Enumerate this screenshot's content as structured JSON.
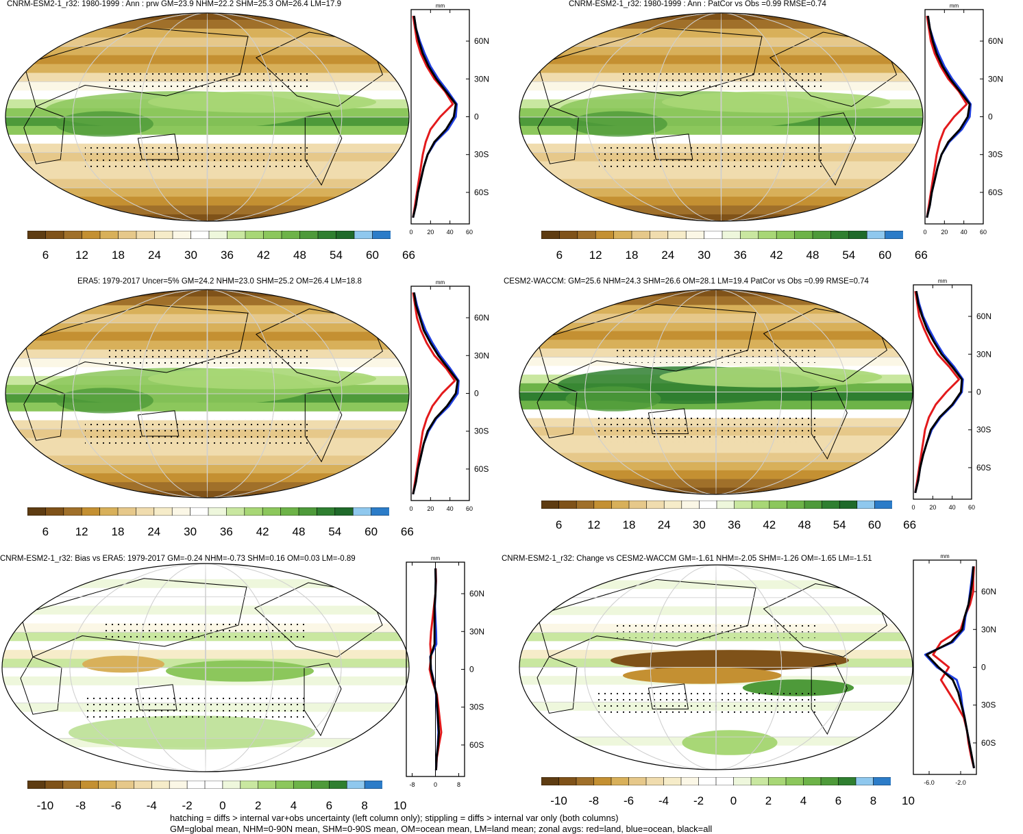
{
  "panels": [
    {
      "id": "p1",
      "title": "CNRM-ESM2-1_r32: 1980-1999 : Ann : prw GM=23.9 NHM=22.2 SHM=25.3 OM=26.4 LM=17.9",
      "kind": "abs",
      "zonal": {
        "unit": "mm",
        "xticks": [
          "0",
          "20",
          "40",
          "60"
        ],
        "yticks": [
          "60N",
          "30N",
          "0",
          "30S",
          "60S"
        ]
      },
      "colorbar": {
        "labels": [
          "6",
          "12",
          "18",
          "24",
          "30",
          "36",
          "42",
          "48",
          "54",
          "60",
          "66"
        ]
      }
    },
    {
      "id": "p2",
      "title": "CNRM-ESM2-1_r32: 1980-1999 : Ann : PatCor vs Obs =0.99 RMSE=0.74",
      "kind": "abs",
      "zonal": {
        "unit": "mm",
        "xticks": [
          "0",
          "20",
          "40",
          "60"
        ],
        "yticks": [
          "60N",
          "30N",
          "0",
          "30S",
          "60S"
        ]
      },
      "colorbar": {
        "labels": [
          "6",
          "12",
          "18",
          "24",
          "30",
          "36",
          "42",
          "48",
          "54",
          "60",
          "66"
        ]
      }
    },
    {
      "id": "p3",
      "title": "ERA5: 1979-2017 Uncer=5% GM=24.2 NHM=23.0 SHM=25.2 OM=26.4 LM=18.8",
      "kind": "abs",
      "zonal": {
        "unit": "mm",
        "xticks": [
          "0",
          "20",
          "40",
          "60"
        ],
        "yticks": [
          "60N",
          "30N",
          "0",
          "30S",
          "60S"
        ]
      },
      "colorbar": {
        "labels": [
          "6",
          "12",
          "18",
          "24",
          "30",
          "36",
          "42",
          "48",
          "54",
          "60",
          "66"
        ]
      }
    },
    {
      "id": "p4",
      "title": "CESM2-WACCM: GM=25.6 NHM=24.3 SHM=26.6 OM=28.1 LM=19.4 PatCor vs Obs =0.99 RMSE=0.74",
      "kind": "abs",
      "zonal": {
        "unit": "mm",
        "xticks": [
          "0",
          "20",
          "40",
          "60"
        ],
        "yticks": [
          "60N",
          "30N",
          "0",
          "30S",
          "60S"
        ]
      },
      "colorbar": {
        "labels": [
          "6",
          "12",
          "18",
          "24",
          "30",
          "36",
          "42",
          "48",
          "54",
          "60",
          "66"
        ]
      }
    },
    {
      "id": "p5",
      "title": "CNRM-ESM2-1_r32: Bias vs ERA5: 1979-2017 GM=-0.24 NHM=-0.73 SHM=0.16 OM=0.03 LM=-0.89",
      "kind": "diff",
      "zonal": {
        "unit": "mm",
        "xticks": [
          "-8",
          "0",
          "8"
        ],
        "yticks": [
          "60N",
          "30N",
          "0",
          "30S",
          "60S"
        ]
      },
      "colorbar": {
        "labels": [
          "-10",
          "-8",
          "-6",
          "-4",
          "-2",
          "0",
          "2",
          "4",
          "6",
          "8",
          "10"
        ]
      }
    },
    {
      "id": "p6",
      "title": "CNRM-ESM2-1_r32: Change vs CESM2-WACCM GM=-1.61 NHM=-2.05 SHM=-1.26 OM=-1.65 LM=-1.51",
      "kind": "diff",
      "zonal": {
        "unit": "mm",
        "xticks": [
          "-6.0",
          "-2.0"
        ],
        "yticks": [
          "60N",
          "30N",
          "0",
          "30S",
          "60S"
        ]
      },
      "colorbar": {
        "labels": [
          "-10",
          "-8",
          "-6",
          "-4",
          "-2",
          "0",
          "2",
          "4",
          "6",
          "8",
          "10"
        ]
      }
    }
  ],
  "colors": {
    "abs": [
      "#5e3c12",
      "#7f5219",
      "#a0702a",
      "#c49032",
      "#d8b05a",
      "#e6c88a",
      "#f0dcae",
      "#f6ecc9",
      "#fbf7e6",
      "#ffffff",
      "#eef7dc",
      "#c9e7a0",
      "#a8d776",
      "#8cc75c",
      "#6db348",
      "#4e9a3a",
      "#2f7f30",
      "#1f6a2a",
      "#8fc8ee",
      "#2c7cc8"
    ],
    "diff": [
      "#5e3c12",
      "#7f5219",
      "#a0702a",
      "#c49032",
      "#d8b05a",
      "#e6c88a",
      "#f0dcae",
      "#f6ecc9",
      "#fbf7e6",
      "#ffffff",
      "#ffffff",
      "#eef7dc",
      "#c9e7a0",
      "#a8d776",
      "#8cc75c",
      "#6db348",
      "#4e9a3a",
      "#2f7f30",
      "#8fc8ee",
      "#2c7cc8"
    ],
    "land": "#e31a1c",
    "ocean": "#1f3fe0",
    "all": "#000000"
  },
  "chart_data": {
    "type": "zonal-mean line profiles",
    "y_units": "latitude",
    "panels": [
      {
        "title": "CNRM-ESM2-1_r32: 1980-1999 : Ann : prw",
        "xlim": [
          0,
          60
        ],
        "series": [
          {
            "name": "land",
            "x": [
              2,
              4,
              6,
              8,
              10,
              12,
              15,
              20,
              30,
              43,
              35,
              24,
              16,
              10,
              6,
              4,
              2
            ],
            "y": [
              -80,
              -70,
              -60,
              -50,
              -40,
              -30,
              -20,
              -10,
              0,
              10,
              20,
              30,
              40,
              50,
              60,
              70,
              80
            ]
          },
          {
            "name": "ocean",
            "x": [
              2,
              5,
              7,
              10,
              13,
              17,
              25,
              38,
              46,
              47,
              38,
              28,
              20,
              14,
              9,
              5,
              3
            ],
            "y": [
              -80,
              -70,
              -60,
              -50,
              -40,
              -30,
              -20,
              -10,
              0,
              10,
              20,
              30,
              40,
              50,
              60,
              70,
              80
            ]
          },
          {
            "name": "all",
            "x": [
              2,
              5,
              7,
              10,
              13,
              17,
              24,
              36,
              44,
              46,
              36,
              26,
              18,
              12,
              8,
              5,
              3
            ],
            "y": [
              -80,
              -70,
              -60,
              -50,
              -40,
              -30,
              -20,
              -10,
              0,
              10,
              20,
              30,
              40,
              50,
              60,
              70,
              80
            ]
          }
        ]
      },
      {
        "title": "CNRM-ESM2-1_r32: 1980-1999 : Ann : PatCor vs Obs =0.99 RMSE=0.74",
        "xlim": [
          0,
          60
        ],
        "series": [
          {
            "name": "land",
            "x": [
              2,
              4,
              6,
              8,
              10,
              12,
              15,
              20,
              30,
              43,
              35,
              24,
              16,
              10,
              6,
              4,
              2
            ],
            "y": [
              -80,
              -70,
              -60,
              -50,
              -40,
              -30,
              -20,
              -10,
              0,
              10,
              20,
              30,
              40,
              50,
              60,
              70,
              80
            ]
          },
          {
            "name": "ocean",
            "x": [
              2,
              5,
              7,
              10,
              13,
              17,
              25,
              38,
              46,
              47,
              38,
              28,
              20,
              14,
              9,
              5,
              3
            ],
            "y": [
              -80,
              -70,
              -60,
              -50,
              -40,
              -30,
              -20,
              -10,
              0,
              10,
              20,
              30,
              40,
              50,
              60,
              70,
              80
            ]
          },
          {
            "name": "all",
            "x": [
              2,
              5,
              7,
              10,
              13,
              17,
              24,
              36,
              44,
              46,
              36,
              26,
              18,
              12,
              8,
              5,
              3
            ],
            "y": [
              -80,
              -70,
              -60,
              -50,
              -40,
              -30,
              -20,
              -10,
              0,
              10,
              20,
              30,
              40,
              50,
              60,
              70,
              80
            ]
          }
        ]
      },
      {
        "title": "ERA5: 1979-2017",
        "xlim": [
          0,
          60
        ],
        "series": [
          {
            "name": "land",
            "x": [
              2,
              4,
              6,
              8,
              10,
              12,
              16,
              22,
              32,
              45,
              36,
              24,
              16,
              10,
              6,
              4,
              2
            ],
            "y": [
              -80,
              -70,
              -60,
              -50,
              -40,
              -30,
              -20,
              -10,
              0,
              10,
              20,
              30,
              40,
              50,
              60,
              70,
              80
            ]
          },
          {
            "name": "ocean",
            "x": [
              2,
              5,
              7,
              10,
              13,
              18,
              26,
              39,
              48,
              49,
              40,
              30,
              22,
              15,
              10,
              6,
              3
            ],
            "y": [
              -80,
              -70,
              -60,
              -50,
              -40,
              -30,
              -20,
              -10,
              0,
              10,
              20,
              30,
              40,
              50,
              60,
              70,
              80
            ]
          },
          {
            "name": "all",
            "x": [
              2,
              5,
              7,
              10,
              13,
              17,
              25,
              37,
              46,
              48,
              38,
              28,
              20,
              13,
              9,
              5,
              3
            ],
            "y": [
              -80,
              -70,
              -60,
              -50,
              -40,
              -30,
              -20,
              -10,
              0,
              10,
              20,
              30,
              40,
              50,
              60,
              70,
              80
            ]
          }
        ]
      },
      {
        "title": "CESM2-WACCM",
        "xlim": [
          0,
          60
        ],
        "series": [
          {
            "name": "land",
            "x": [
              2,
              4,
              6,
              8,
              10,
              12,
              16,
              23,
              34,
              47,
              37,
              25,
              17,
              11,
              6,
              4,
              2
            ],
            "y": [
              -80,
              -70,
              -60,
              -50,
              -40,
              -30,
              -20,
              -10,
              0,
              10,
              20,
              30,
              40,
              50,
              60,
              70,
              80
            ]
          },
          {
            "name": "ocean",
            "x": [
              2,
              5,
              7,
              10,
              14,
              19,
              28,
              41,
              50,
              51,
              42,
              31,
              23,
              16,
              10,
              6,
              3
            ],
            "y": [
              -80,
              -70,
              -60,
              -50,
              -40,
              -30,
              -20,
              -10,
              0,
              10,
              20,
              30,
              40,
              50,
              60,
              70,
              80
            ]
          },
          {
            "name": "all",
            "x": [
              2,
              5,
              7,
              10,
              14,
              18,
              27,
              40,
              49,
              50,
              40,
              29,
              21,
              14,
              9,
              5,
              3
            ],
            "y": [
              -80,
              -70,
              -60,
              -50,
              -40,
              -30,
              -20,
              -10,
              0,
              10,
              20,
              30,
              40,
              50,
              60,
              70,
              80
            ]
          }
        ]
      },
      {
        "title": "CNRM-ESM2-1_r32: Bias vs ERA5",
        "xlim": [
          -10,
          10
        ],
        "series": [
          {
            "name": "land",
            "x": [
              0.2,
              0.5,
              1.2,
              2.0,
              1.5,
              1.0,
              0.5,
              -1.0,
              -2.0,
              -1.5,
              -1.8,
              -1.5,
              -1.0,
              -0.5,
              0,
              0.2,
              0.1
            ],
            "y": [
              -80,
              -70,
              -60,
              -50,
              -40,
              -30,
              -20,
              -10,
              0,
              10,
              20,
              30,
              40,
              50,
              60,
              70,
              80
            ]
          },
          {
            "name": "ocean",
            "x": [
              0.2,
              0.4,
              0.8,
              1.0,
              0.8,
              0.5,
              0.2,
              -0.5,
              -1.5,
              -1.8,
              0.3,
              0.2,
              0,
              -0.2,
              0,
              0.1,
              0
            ],
            "y": [
              -80,
              -70,
              -60,
              -50,
              -40,
              -30,
              -20,
              -10,
              0,
              10,
              20,
              30,
              40,
              50,
              60,
              70,
              80
            ]
          },
          {
            "name": "all",
            "x": [
              0.2,
              0.4,
              0.9,
              1.2,
              0.9,
              0.6,
              0.3,
              -0.6,
              -1.6,
              -1.7,
              -0.3,
              -0.3,
              -0.3,
              -0.3,
              0,
              0.1,
              0
            ],
            "y": [
              -80,
              -70,
              -60,
              -50,
              -40,
              -30,
              -20,
              -10,
              0,
              10,
              20,
              30,
              40,
              50,
              60,
              70,
              80
            ]
          }
        ]
      },
      {
        "title": "CNRM-ESM2-1_r32: Change vs CESM2-WACCM",
        "xlim": [
          -8,
          0
        ],
        "series": [
          {
            "name": "land",
            "x": [
              -0.3,
              -0.7,
              -1.0,
              -1.2,
              -1.6,
              -2.5,
              -3.5,
              -4.5,
              -3.5,
              -5.5,
              -4.5,
              -2.0,
              -1.5,
              -0.8,
              -0.4,
              -0.4,
              -0.3
            ],
            "y": [
              -80,
              -70,
              -60,
              -50,
              -40,
              -30,
              -20,
              -10,
              0,
              10,
              20,
              30,
              40,
              50,
              60,
              70,
              80
            ]
          },
          {
            "name": "ocean",
            "x": [
              -0.3,
              -0.6,
              -0.9,
              -1.2,
              -1.5,
              -1.8,
              -2.0,
              -2.5,
              -5.0,
              -6.5,
              -3.0,
              -1.6,
              -1.4,
              -1.0,
              -0.8,
              -0.6,
              -0.4
            ],
            "y": [
              -80,
              -70,
              -60,
              -50,
              -40,
              -30,
              -20,
              -10,
              0,
              10,
              20,
              30,
              40,
              50,
              60,
              70,
              80
            ]
          },
          {
            "name": "all",
            "x": [
              -0.3,
              -0.6,
              -0.9,
              -1.2,
              -1.5,
              -1.9,
              -2.3,
              -3.0,
              -4.8,
              -6.3,
              -3.2,
              -1.8,
              -1.5,
              -1.0,
              -0.7,
              -0.5,
              -0.4
            ],
            "y": [
              -80,
              -70,
              -60,
              -50,
              -40,
              -30,
              -20,
              -10,
              0,
              10,
              20,
              30,
              40,
              50,
              60,
              70,
              80
            ]
          }
        ]
      }
    ]
  },
  "footnote": {
    "line1": "hatching = diffs > internal var+obs uncertainty (left column only); stippling = diffs > internal var only (both columns)",
    "line2": "GM=global mean, NHM=0-90N mean, SHM=0-90S mean, OM=ocean mean, LM=land mean; zonal avgs: red=land, blue=ocean, black=all"
  }
}
